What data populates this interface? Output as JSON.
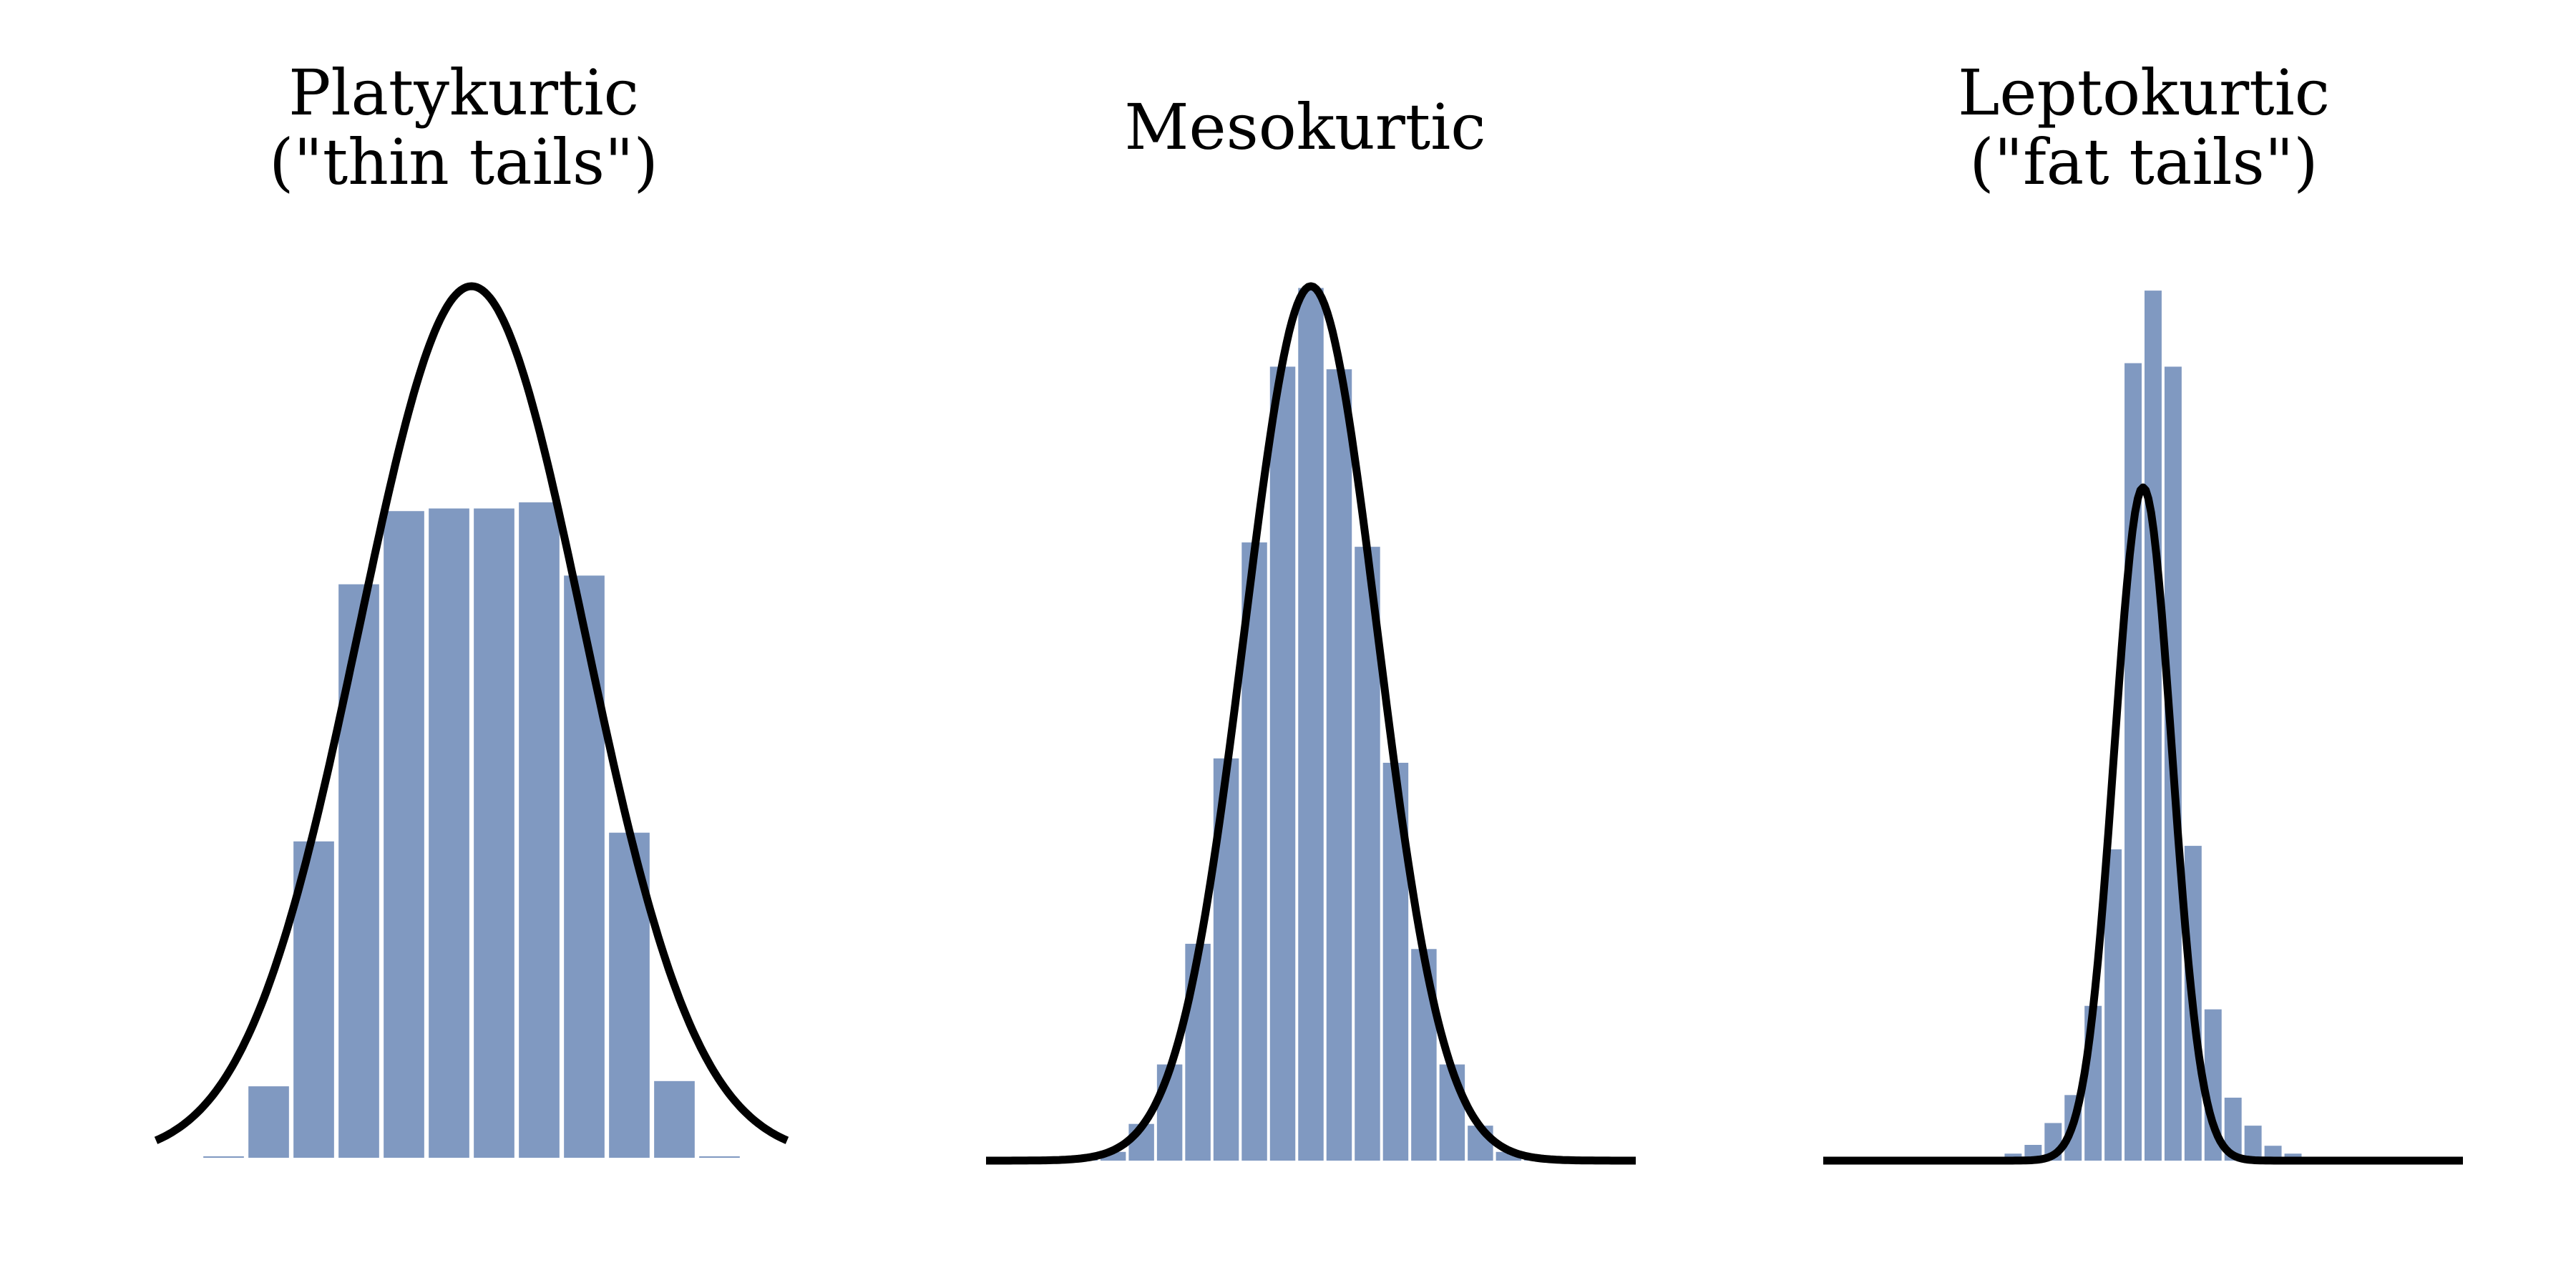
{
  "colors": {
    "bar": "#8099c1",
    "curve": "#000000",
    "background": "#ffffff"
  },
  "chart_data": [
    {
      "type": "bar",
      "title": [
        "Platykurtic",
        "(\"thin tails\")"
      ],
      "xlabel": "",
      "ylabel": "",
      "axes_visible": false,
      "grid": false,
      "bins": {
        "start": 0.5,
        "width": 1,
        "values": [
          0.0,
          0.082,
          0.363,
          0.658,
          0.742,
          0.745,
          0.745,
          0.752,
          0.668,
          0.373,
          0.088,
          0.0
        ]
      },
      "curve": {
        "type": "normal",
        "mean": 6.5,
        "sd": 2.5,
        "peak": 1.0,
        "x_range": [
          -0.5,
          13.5
        ]
      },
      "ylim": [
        0,
        1.0
      ]
    },
    {
      "type": "bar",
      "title": [
        "Mesokurtic"
      ],
      "xlabel": "",
      "ylabel": "",
      "axes_visible": false,
      "grid": false,
      "bins": {
        "start": 0.5,
        "width": 1,
        "values": [
          0.0,
          0.003,
          0.01,
          0.042,
          0.11,
          0.248,
          0.46,
          0.707,
          0.908,
          0.998,
          0.905,
          0.702,
          0.455,
          0.242,
          0.11,
          0.04,
          0.01,
          0.003,
          0.0
        ]
      },
      "curve": {
        "type": "normal",
        "mean": 10.0,
        "sd": 2.35,
        "peak": 1.0,
        "x_range": [
          -1.5,
          21.5
        ]
      },
      "ylim": [
        0,
        1.0
      ]
    },
    {
      "type": "bar",
      "title": [
        "Leptokurtic",
        "(\"fat tails\")"
      ],
      "xlabel": "",
      "ylabel": "",
      "axes_visible": false,
      "grid": false,
      "bins": {
        "start": 0.5,
        "width": 1,
        "values": [
          0.0,
          0.001,
          0.003,
          0.008,
          0.018,
          0.043,
          0.075,
          0.177,
          0.356,
          0.912,
          0.995,
          0.908,
          0.36,
          0.173,
          0.072,
          0.04,
          0.017,
          0.008,
          0.003,
          0.0
        ]
      },
      "curve": {
        "type": "normal",
        "mean": 10.5,
        "sd": 1.45,
        "peak": 0.77,
        "x_range": [
          -5.5,
          26.5
        ]
      },
      "ylim": [
        0,
        1.0
      ]
    }
  ]
}
